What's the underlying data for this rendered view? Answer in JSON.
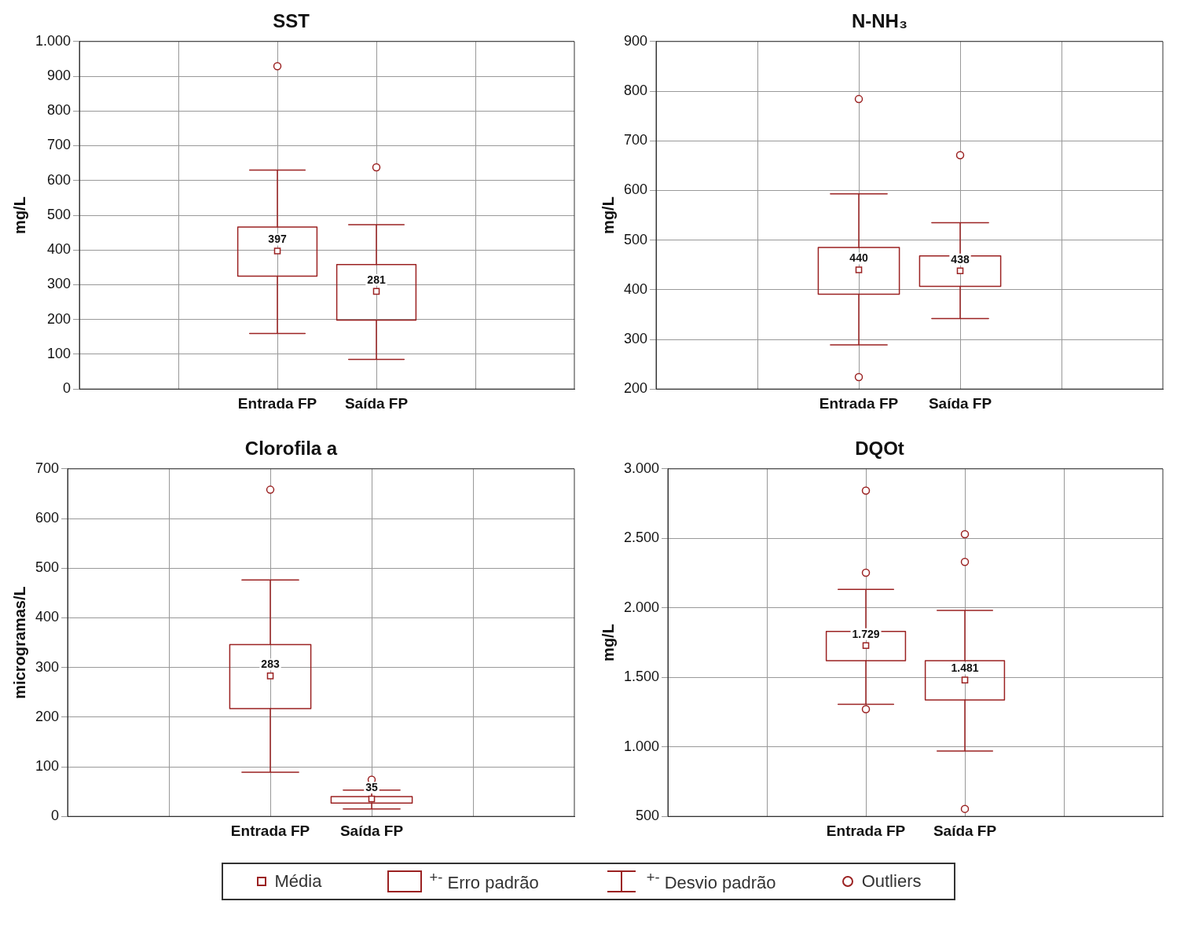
{
  "chart_data": [
    {
      "type": "box",
      "title": "SST",
      "ylabel": "mg/L",
      "categories": [
        "Entrada FP",
        "Saída FP"
      ],
      "color": "#9b2222",
      "grid": true,
      "ylim": [
        0,
        1000
      ],
      "yticks": [
        0,
        100,
        200,
        300,
        400,
        500,
        600,
        700,
        800,
        900,
        {
          "value": 1000,
          "label": "1.000"
        }
      ],
      "boxes": [
        {
          "low": 160,
          "q1": 325,
          "q3": 466,
          "high": 630,
          "mean": 397,
          "outliers": [
            929
          ]
        },
        {
          "low": 85,
          "q1": 198,
          "q3": 358,
          "high": 473,
          "mean": 281,
          "outliers": [
            638
          ]
        }
      ],
      "annotations": [
        "397",
        "281"
      ]
    },
    {
      "type": "box",
      "title": "N-NH₃",
      "ylabel": "mg/L",
      "categories": [
        "Entrada FP",
        "Saída FP"
      ],
      "color": "#9b2222",
      "grid": true,
      "ylim": [
        200,
        900
      ],
      "yticks": [
        200,
        300,
        400,
        500,
        600,
        700,
        800,
        900
      ],
      "boxes": [
        {
          "low": 289,
          "q1": 391,
          "q3": 485,
          "high": 593,
          "mean": 440,
          "outliers": [
            784,
            224
          ]
        },
        {
          "low": 342,
          "q1": 407,
          "q3": 468,
          "high": 535,
          "mean": 438,
          "outliers": [
            671
          ]
        }
      ],
      "annotations": [
        "440",
        "438"
      ]
    },
    {
      "type": "box",
      "title": "Clorofila a",
      "ylabel": "microgramas/L",
      "categories": [
        "Entrada FP",
        "Saída FP"
      ],
      "color": "#9b2222",
      "grid": true,
      "ylim": [
        0,
        700
      ],
      "yticks": [
        0,
        100,
        200,
        300,
        400,
        500,
        600,
        700
      ],
      "boxes": [
        {
          "low": 89,
          "q1": 217,
          "q3": 346,
          "high": 476,
          "mean": 283,
          "outliers": [
            658
          ]
        },
        {
          "low": 15,
          "q1": 27,
          "q3": 40,
          "high": 53,
          "mean": 35,
          "outliers": [
            74
          ]
        }
      ],
      "annotations": [
        "283",
        "35"
      ]
    },
    {
      "type": "box",
      "title": "DQOt",
      "ylabel": "mg/L",
      "categories": [
        "Entrada FP",
        "Saída FP"
      ],
      "color": "#9b2222",
      "grid": true,
      "ylim": [
        500,
        3000
      ],
      "yticks": [
        500,
        {
          "value": 1000,
          "label": "1.000"
        },
        {
          "value": 1500,
          "label": "1.500"
        },
        {
          "value": 2000,
          "label": "2.000"
        },
        {
          "value": 2500,
          "label": "2.500"
        },
        {
          "value": 3000,
          "label": "3.000"
        }
      ],
      "boxes": [
        {
          "low": 1307,
          "q1": 1620,
          "q3": 1831,
          "high": 2133,
          "mean": 1729,
          "outliers": [
            2843,
            2253,
            1271
          ]
        },
        {
          "low": 970,
          "q1": 1337,
          "q3": 1620,
          "high": 1982,
          "mean": 1481,
          "outliers": [
            2530,
            2331,
            554
          ]
        }
      ],
      "annotations": [
        "1.729",
        "1.481"
      ]
    },
    {
      "type": "other",
      "annotations": [
        "Média",
        "$^{+-}$ Erro padrão",
        "$^{+-}$ Desvio padrão",
        "Outliers"
      ]
    }
  ]
}
